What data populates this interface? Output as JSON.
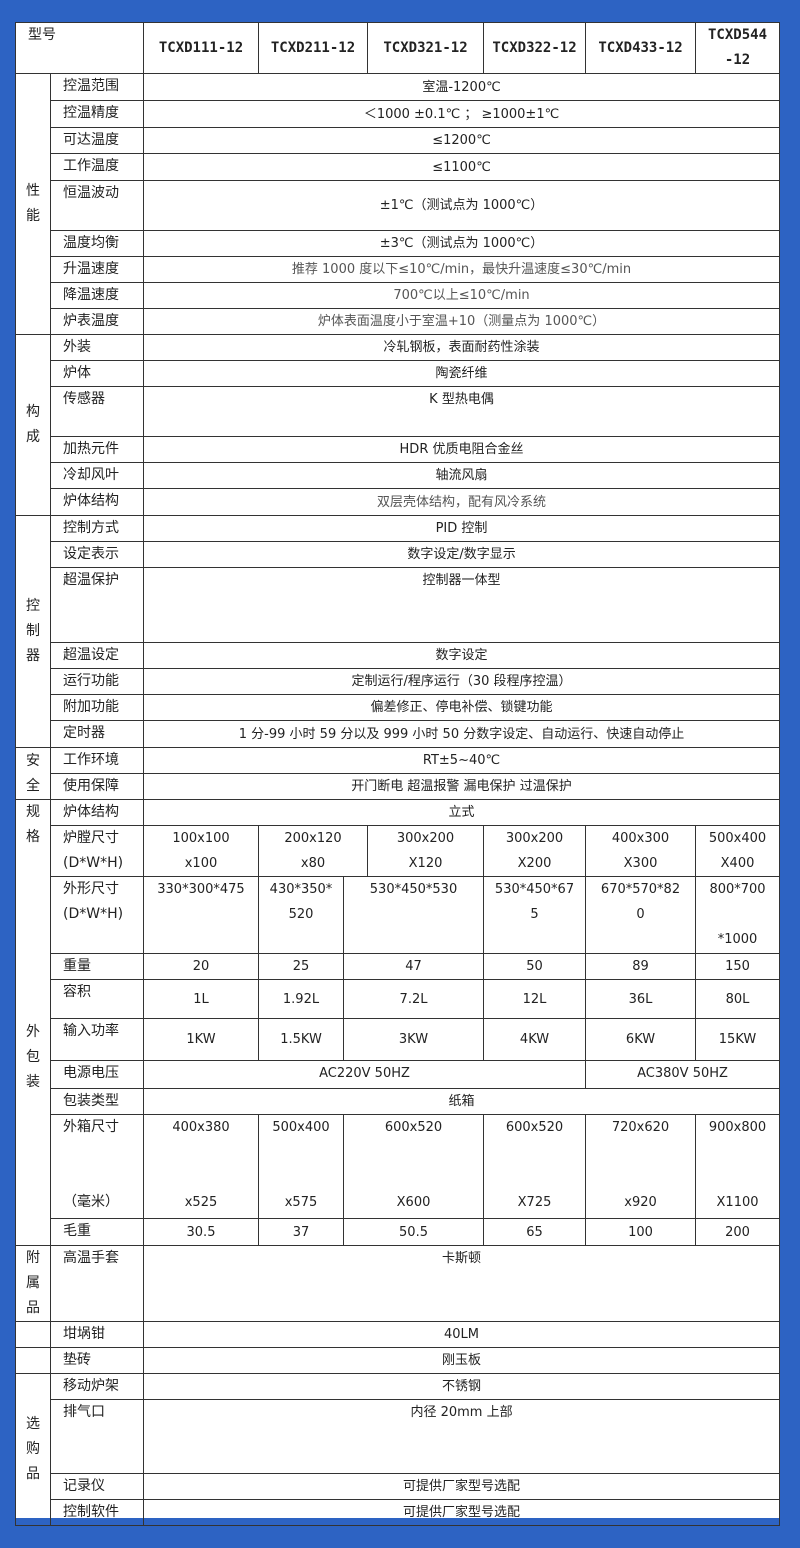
{
  "header": {
    "label": "型号",
    "models": [
      "TCXD111-12",
      "TCXD211-12",
      "TCXD321-12",
      "TCXD322-12",
      "TCXD433-12",
      "TCXD544\n-12"
    ]
  },
  "performance": {
    "group": "性\n能",
    "rows": [
      {
        "label": "控温范围",
        "value": "室温-1200℃"
      },
      {
        "label": "控温精度",
        "value": "＜1000  ±0.1℃ ；  ≥1000±1℃"
      },
      {
        "label": "可达温度",
        "value": "≤1200℃"
      },
      {
        "label": "工作温度",
        "value": "≤1100℃"
      },
      {
        "label": "恒温波动",
        "value": "±1℃（测试点为 1000℃）"
      },
      {
        "label": "温度均衡",
        "value": "±3℃（测试点为 1000℃）"
      },
      {
        "label": "升温速度",
        "value": "推荐 1000 度以下≤10℃/min，最快升温速度≤30℃/min"
      },
      {
        "label": "降温速度",
        "value": "700℃以上≤10℃/min"
      },
      {
        "label": "炉表温度",
        "value": "炉体表面温度小于室温+10（测量点为 1000℃）"
      }
    ]
  },
  "construction": {
    "group": "构\n成",
    "rows": [
      {
        "label": "外装",
        "value": "冷轧钢板，表面耐药性涂装"
      },
      {
        "label": "炉体",
        "value": "陶瓷纤维"
      },
      {
        "label": "传感器",
        "value": "K 型热电偶"
      },
      {
        "label": "加热元件",
        "value": "HDR 优质电阻合金丝"
      },
      {
        "label": "冷却风叶",
        "value": "轴流风扇"
      },
      {
        "label": "炉体结构",
        "value": "双层壳体结构，配有风冷系统"
      }
    ]
  },
  "controller": {
    "group": "控\n制\n器",
    "rows": [
      {
        "label": "控制方式",
        "value": "PID 控制"
      },
      {
        "label": "设定表示",
        "value": "数字设定/数字显示"
      },
      {
        "label": "超温保护",
        "value": "控制器一体型"
      },
      {
        "label": "超温设定",
        "value": "数字设定"
      },
      {
        "label": "运行功能",
        "value": "定制运行/程序运行（30 段程序控温）"
      },
      {
        "label": "附加功能",
        "value": "偏差修正、停电补偿、锁键功能"
      },
      {
        "label": "定时器",
        "value": "1 分-99 小时 59 分以及 999 小时 50 分数字设定、自动运行、快速自动停止"
      }
    ]
  },
  "safety": {
    "group": "安\n全",
    "rows": [
      {
        "label": "工作环境",
        "value": "RT±5~40℃"
      },
      {
        "label": "使用保障",
        "value": "开门断电 超温报警 漏电保护 过温保护"
      }
    ]
  },
  "specs": {
    "group": "规\n格",
    "group2": "外\n包\n装",
    "structure": {
      "label": "炉体结构",
      "value": "立式"
    },
    "chamber": {
      "label": "炉膛尺寸\n(D*W*H)",
      "values": [
        "100x100\nx100",
        "200x120\nx80",
        "300x200\nX120",
        "300x200\nX200",
        "400x300\nX300",
        "500x400\nX400"
      ]
    },
    "outer": {
      "label": "外形尺寸\n(D*W*H)",
      "values": [
        "330*300*475",
        "430*350*\n520",
        "530*450*530",
        "530*450*67\n5",
        "670*570*82\n0",
        "800*700\n\n*1000"
      ]
    },
    "weight": {
      "label": "重量",
      "values": [
        "20",
        "25",
        "47",
        "50",
        "89",
        "150"
      ]
    },
    "volume": {
      "label": "容积",
      "values": [
        "1L",
        "1.92L",
        "7.2L",
        "12L",
        "36L",
        "80L"
      ]
    },
    "power": {
      "label": "输入功率",
      "values": [
        "1KW",
        "1.5KW",
        "3KW",
        "4KW",
        "6KW",
        "15KW"
      ]
    },
    "voltage": {
      "label": "电源电压",
      "values": [
        "AC220V 50HZ",
        "AC380V 50HZ"
      ]
    },
    "packaging": {
      "label": "包装类型",
      "value": "纸箱"
    },
    "box": {
      "label": "外箱尺寸\n\n\n（毫米）",
      "values": [
        "400x380\n\n\nx525",
        "500x400\n\n\nx575",
        "600x520\n\n\nX600",
        "600x520\n\n\nX725",
        "720x620\n\n\nx920",
        "900x800\n\n\nX1100"
      ]
    },
    "gross": {
      "label": "毛重",
      "values": [
        "30.5",
        "37",
        "50.5",
        "65",
        "100",
        "200"
      ]
    }
  },
  "accessories": {
    "group": "附\n属\n品",
    "rows": [
      {
        "label": "高温手套",
        "value": "卡斯顿"
      },
      {
        "label": "坩埚钳",
        "value": "40LM"
      },
      {
        "label": "垫砖",
        "value": "刚玉板"
      }
    ]
  },
  "optional": {
    "group": "选\n购\n品",
    "rows": [
      {
        "label": "移动炉架",
        "value": "不锈钢"
      },
      {
        "label": "排气口",
        "value": "内径 20mm 上部"
      },
      {
        "label": "记录仪",
        "value": "可提供厂家型号选配"
      },
      {
        "label": "控制软件",
        "value": "可提供厂家型号选配"
      }
    ]
  },
  "colors": {
    "background": "#2d63c3",
    "table": "#ffffff",
    "border": "#333333"
  }
}
